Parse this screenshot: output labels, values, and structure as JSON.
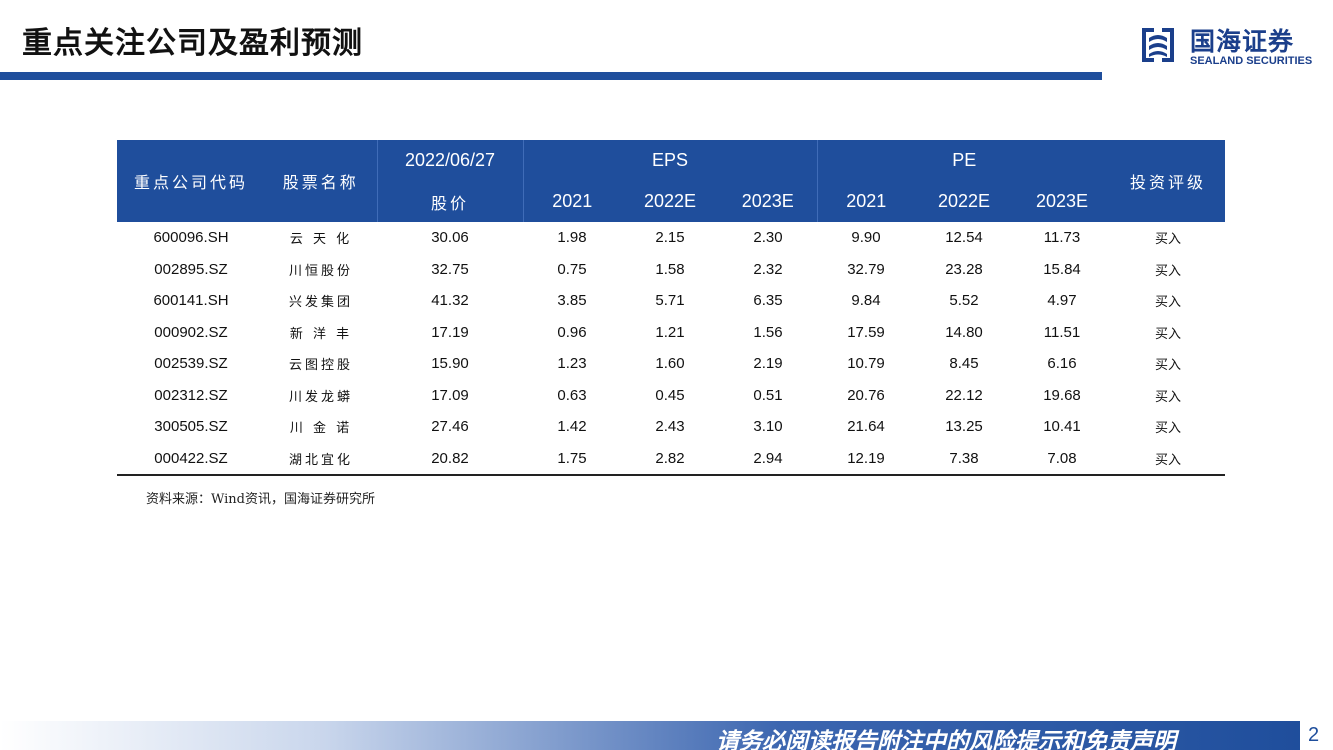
{
  "page": {
    "title": "重点关注公司及盈利预测",
    "page_number": "2",
    "footer_disclaimer": "请务必阅读报告附注中的风险提示和免责声明",
    "source_note": "资料来源：Wind资讯，国海证券研究所"
  },
  "logo": {
    "cn_name": "国海证券",
    "en_name": "SEALAND SECURITIES",
    "brand_color": "#1b3f8b"
  },
  "colors": {
    "header_bg": "#1f4e9c",
    "title_bar": "#1f4e9c"
  },
  "table": {
    "headers": {
      "code": "重点公司代码",
      "name": "股票名称",
      "date": "2022/06/27",
      "price": "股价",
      "eps": "EPS",
      "pe": "PE",
      "rating": "投资评级",
      "eps_years": [
        "2021",
        "2022E",
        "2023E"
      ],
      "pe_years": [
        "2021",
        "2022E",
        "2023E"
      ]
    },
    "rows": [
      {
        "code": "600096.SH",
        "name": "云 天 化",
        "price": "30.06",
        "eps": [
          "1.98",
          "2.15",
          "2.30"
        ],
        "pe": [
          "9.90",
          "12.54",
          "11.73"
        ],
        "rating": "买入"
      },
      {
        "code": "002895.SZ",
        "name": "川恒股份",
        "price": "32.75",
        "eps": [
          "0.75",
          "1.58",
          "2.32"
        ],
        "pe": [
          "32.79",
          "23.28",
          "15.84"
        ],
        "rating": "买入"
      },
      {
        "code": "600141.SH",
        "name": "兴发集团",
        "price": "41.32",
        "eps": [
          "3.85",
          "5.71",
          "6.35"
        ],
        "pe": [
          "9.84",
          "5.52",
          "4.97"
        ],
        "rating": "买入"
      },
      {
        "code": "000902.SZ",
        "name": "新 洋 丰",
        "price": "17.19",
        "eps": [
          "0.96",
          "1.21",
          "1.56"
        ],
        "pe": [
          "17.59",
          "14.80",
          "11.51"
        ],
        "rating": "买入"
      },
      {
        "code": "002539.SZ",
        "name": "云图控股",
        "price": "15.90",
        "eps": [
          "1.23",
          "1.60",
          "2.19"
        ],
        "pe": [
          "10.79",
          "8.45",
          "6.16"
        ],
        "rating": "买入"
      },
      {
        "code": "002312.SZ",
        "name": "川发龙蟒",
        "price": "17.09",
        "eps": [
          "0.63",
          "0.45",
          "0.51"
        ],
        "pe": [
          "20.76",
          "22.12",
          "19.68"
        ],
        "rating": "买入"
      },
      {
        "code": "300505.SZ",
        "name": "川 金 诺",
        "price": "27.46",
        "eps": [
          "1.42",
          "2.43",
          "3.10"
        ],
        "pe": [
          "21.64",
          "13.25",
          "10.41"
        ],
        "rating": "买入"
      },
      {
        "code": "000422.SZ",
        "name": "湖北宜化",
        "price": "20.82",
        "eps": [
          "1.75",
          "2.82",
          "2.94"
        ],
        "pe": [
          "12.19",
          "7.38",
          "7.08"
        ],
        "rating": "买入"
      }
    ]
  }
}
